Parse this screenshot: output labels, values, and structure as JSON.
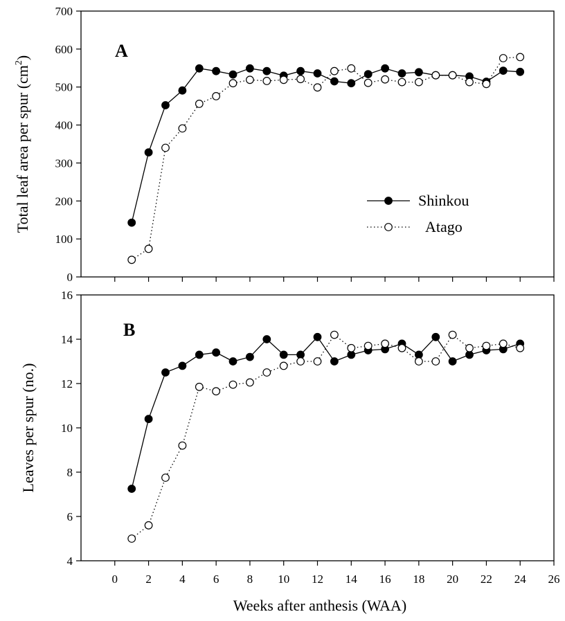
{
  "chart_data": [
    {
      "type": "line",
      "panel": "A",
      "ylabel": "Total leaf area per spur (cm²)",
      "ylabel_main": "Total leaf area per spur (cm",
      "ylabel_sup": "2",
      "ylabel_end": ")",
      "ylim": [
        0,
        700
      ],
      "yticks": [
        "0",
        "100",
        "200",
        "300",
        "400",
        "500",
        "600",
        "700"
      ],
      "xlim": [
        -2,
        26
      ],
      "grid": false,
      "legend_position": "center-right",
      "series": [
        {
          "name": "Shinkou",
          "marker": "filled-circle",
          "line": "solid",
          "x": [
            1,
            2,
            3,
            4,
            5,
            6,
            7,
            8,
            9,
            10,
            11,
            12,
            13,
            14,
            15,
            16,
            17,
            18,
            19,
            20,
            21,
            22,
            23,
            24
          ],
          "y": [
            143,
            328,
            452,
            491,
            549,
            542,
            533,
            549,
            542,
            530,
            542,
            536,
            515,
            510,
            534,
            549,
            536,
            539,
            531,
            531,
            528,
            514,
            543,
            540
          ]
        },
        {
          "name": "Atago",
          "marker": "open-circle",
          "line": "dotted",
          "x": [
            1,
            2,
            3,
            4,
            5,
            6,
            7,
            8,
            9,
            10,
            11,
            12,
            13,
            14,
            15,
            16,
            17,
            18,
            19,
            20,
            21,
            22,
            23,
            24
          ],
          "y": [
            45,
            74,
            340,
            391,
            456,
            476,
            510,
            519,
            516,
            519,
            521,
            499,
            542,
            549,
            511,
            520,
            513,
            513,
            531,
            531,
            513,
            508,
            576,
            579
          ]
        }
      ]
    },
    {
      "type": "line",
      "panel": "B",
      "ylabel": "Leaves per spur (no.)",
      "xlabel": "Weeks after anthesis (WAA)",
      "ylim": [
        4,
        16
      ],
      "yticks": [
        "4",
        "6",
        "8",
        "10",
        "12",
        "14",
        "16"
      ],
      "xlim": [
        -2,
        26
      ],
      "xticks": [
        "0",
        "2",
        "4",
        "6",
        "8",
        "10",
        "12",
        "14",
        "16",
        "18",
        "20",
        "22",
        "24",
        "26"
      ],
      "grid": false,
      "series": [
        {
          "name": "Shinkou",
          "marker": "filled-circle",
          "line": "solid",
          "x": [
            1,
            2,
            3,
            4,
            5,
            6,
            7,
            8,
            9,
            10,
            11,
            12,
            13,
            14,
            15,
            16,
            17,
            18,
            19,
            20,
            21,
            22,
            23,
            24
          ],
          "y": [
            7.25,
            10.4,
            12.5,
            12.8,
            13.3,
            13.4,
            13.0,
            13.2,
            14.0,
            13.3,
            13.3,
            14.1,
            13.0,
            13.3,
            13.5,
            13.55,
            13.8,
            13.3,
            14.1,
            13.0,
            13.3,
            13.5,
            13.55,
            13.8
          ]
        },
        {
          "name": "Atago",
          "marker": "open-circle",
          "line": "dotted",
          "x": [
            1,
            2,
            3,
            4,
            5,
            6,
            7,
            8,
            9,
            10,
            11,
            12,
            13,
            14,
            15,
            16,
            17,
            18,
            19,
            20,
            21,
            22,
            23,
            24
          ],
          "y": [
            5.0,
            5.6,
            7.75,
            9.2,
            11.85,
            11.65,
            11.95,
            12.05,
            12.5,
            12.8,
            13.0,
            13.0,
            14.2,
            13.6,
            13.7,
            13.8,
            13.6,
            13.0,
            13.0,
            14.2,
            13.6,
            13.7,
            13.8,
            13.6
          ]
        }
      ]
    }
  ]
}
